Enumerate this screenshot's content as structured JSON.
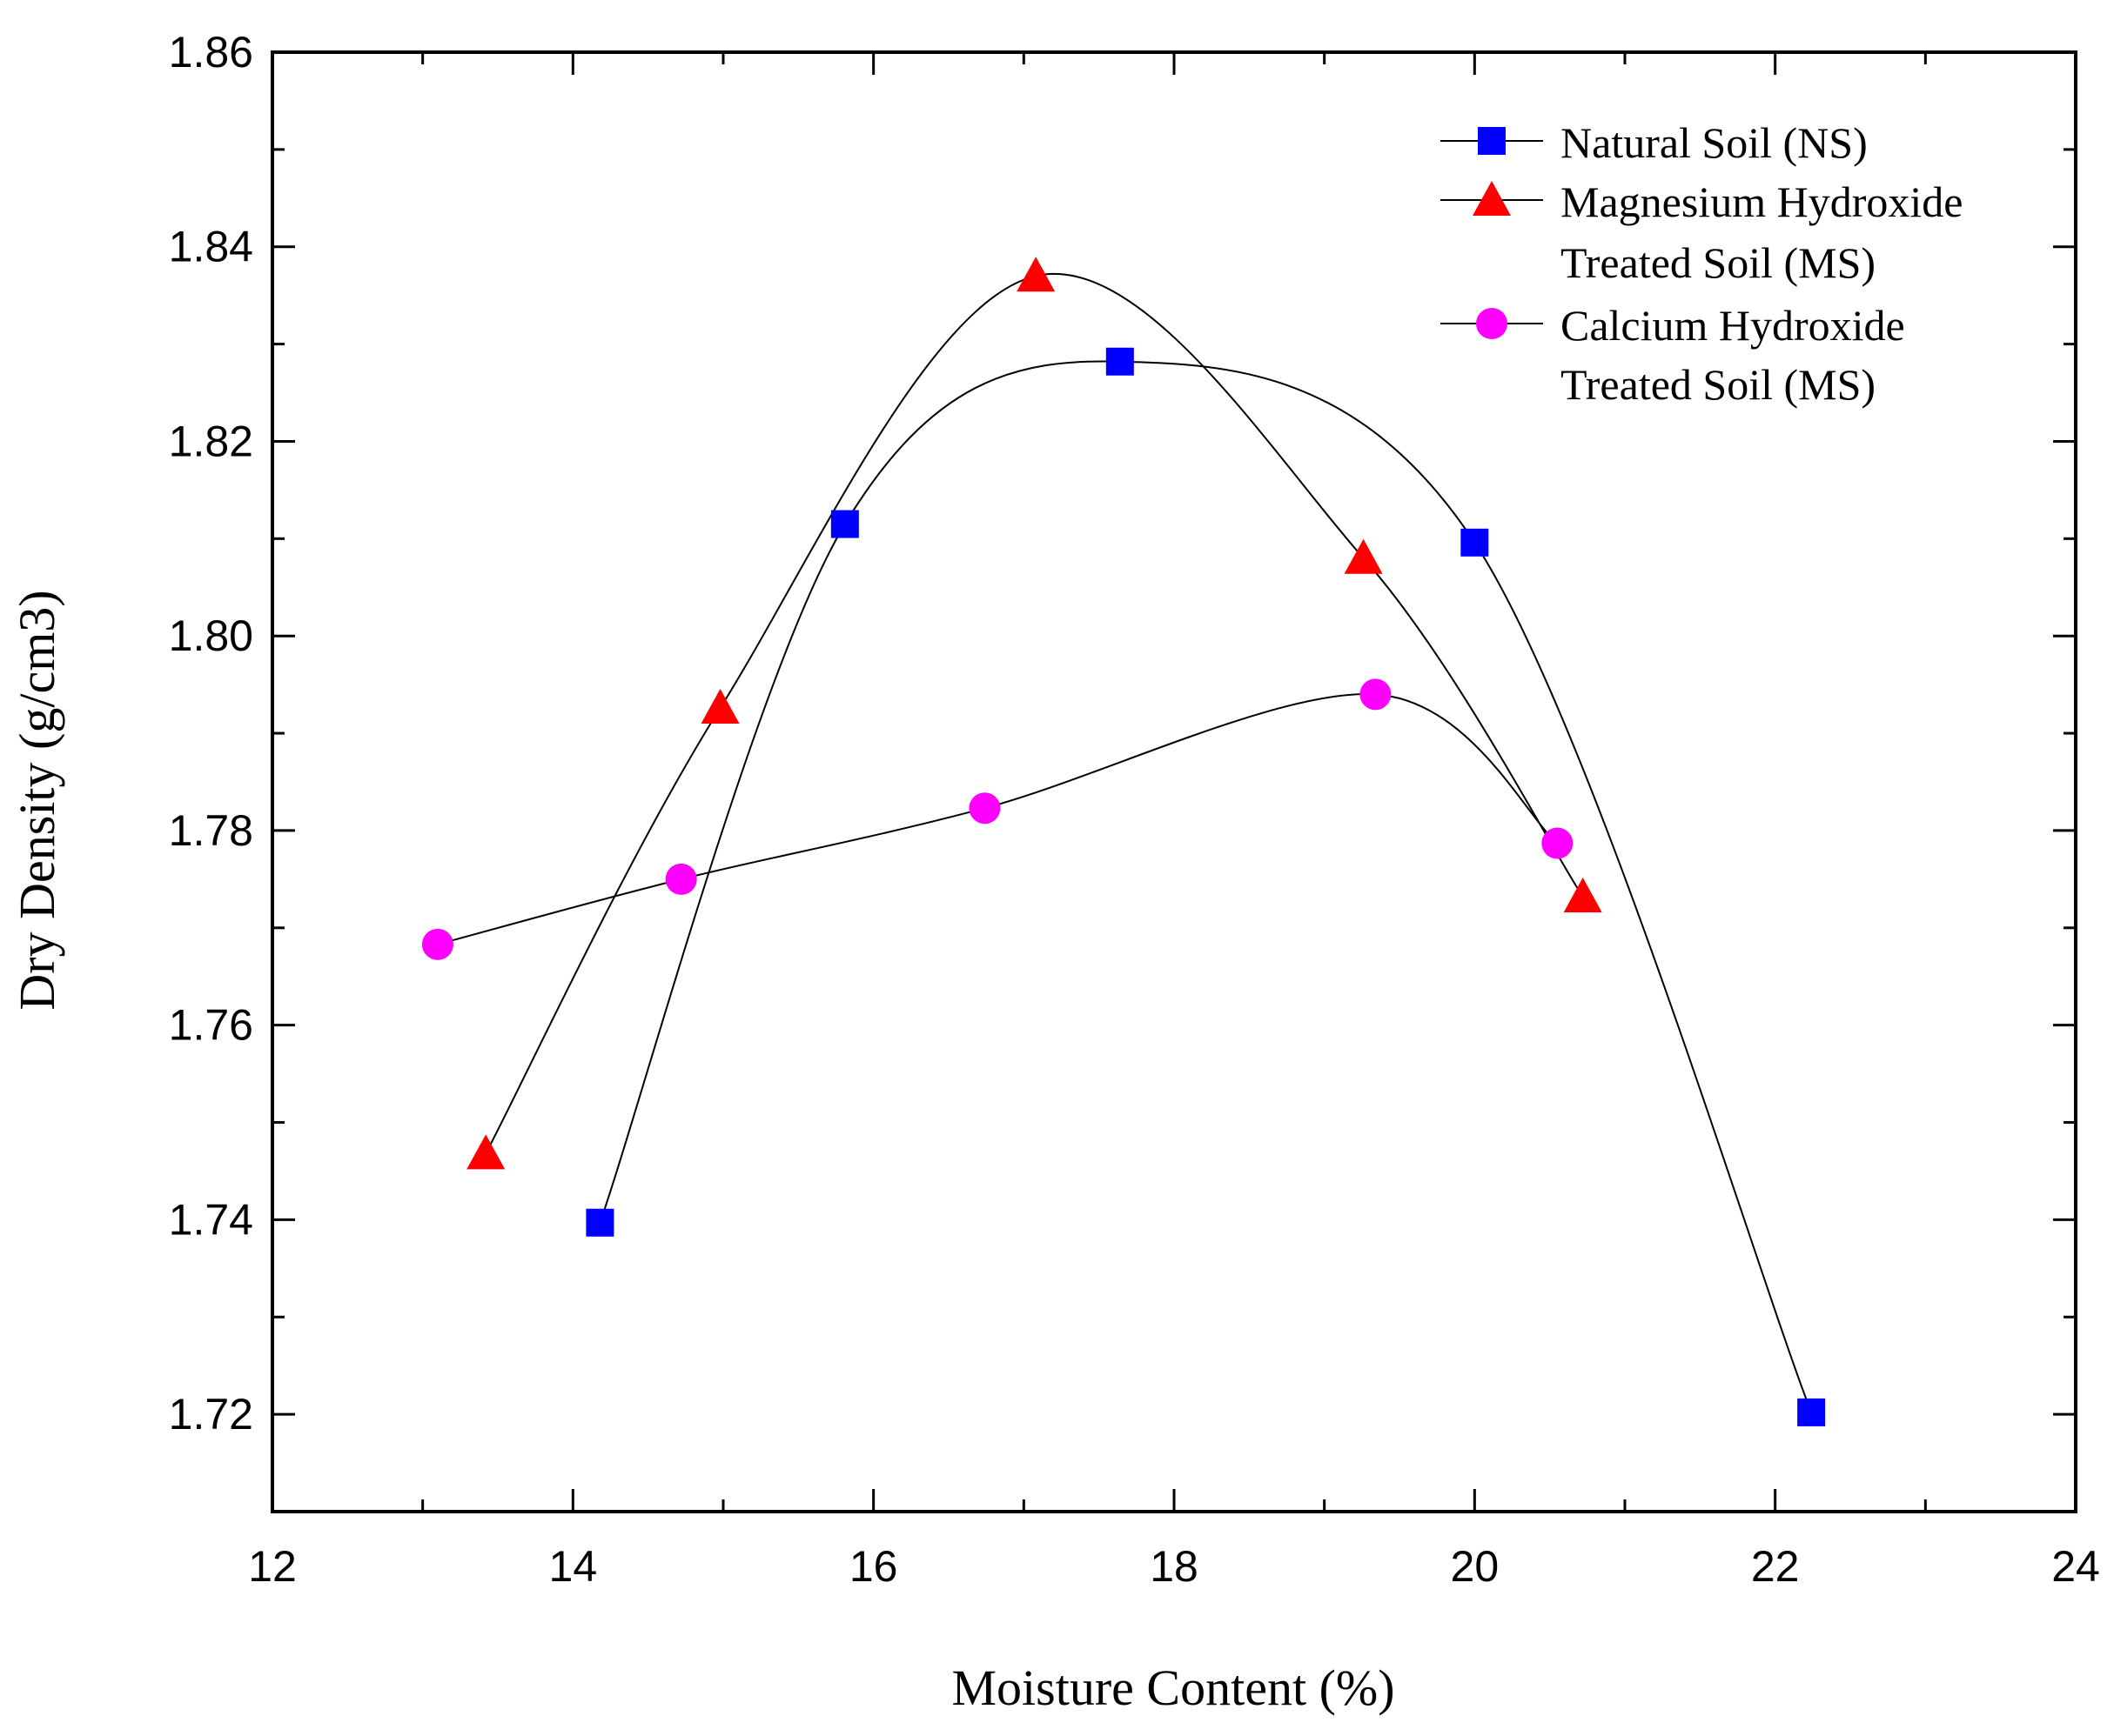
{
  "chart_data": {
    "type": "line",
    "title": "",
    "xlabel": "Moisture Content (%)",
    "ylabel": "Dry Density (g/cm3)",
    "xlim": [
      12,
      24
    ],
    "ylim": [
      1.71,
      1.86
    ],
    "x_ticks": [
      "12",
      "14",
      "16",
      "18",
      "20",
      "22",
      "24"
    ],
    "y_ticks": [
      "1.72",
      "1.74",
      "1.76",
      "1.78",
      "1.80",
      "1.82",
      "1.84",
      "1.86"
    ],
    "grid": false,
    "legend_position": "top-right",
    "series": [
      {
        "name": "Natural Soil (NS)",
        "legend_lines": [
          "Natural Soil (NS)"
        ],
        "marker": "square",
        "color": "#0000ff",
        "points": [
          [
            14.18,
            1.7397
          ],
          [
            15.81,
            1.8115
          ],
          [
            17.64,
            1.8282
          ],
          [
            20.0,
            1.8096
          ],
          [
            22.24,
            1.7202
          ]
        ]
      },
      {
        "name": "Magnesium Hydroxide Treated Soil (MS)",
        "legend_lines": [
          "Magnesium Hydroxide",
          "Treated Soil (MS)"
        ],
        "marker": "triangle",
        "color": "#ff0000",
        "points": [
          [
            13.42,
            1.7468
          ],
          [
            14.98,
            1.7926
          ],
          [
            17.08,
            1.837
          ],
          [
            19.26,
            1.808
          ],
          [
            20.72,
            1.7732
          ]
        ]
      },
      {
        "name": "Calcium Hydroxide Treated Soil (MS)",
        "legend_lines": [
          "Calcium Hydroxide",
          "Treated Soil (MS)"
        ],
        "marker": "circle",
        "color": "#ff00ff",
        "points": [
          [
            13.1,
            1.7683
          ],
          [
            14.72,
            1.775
          ],
          [
            16.74,
            1.7823
          ],
          [
            19.34,
            1.794
          ],
          [
            20.55,
            1.7787
          ]
        ]
      }
    ]
  }
}
